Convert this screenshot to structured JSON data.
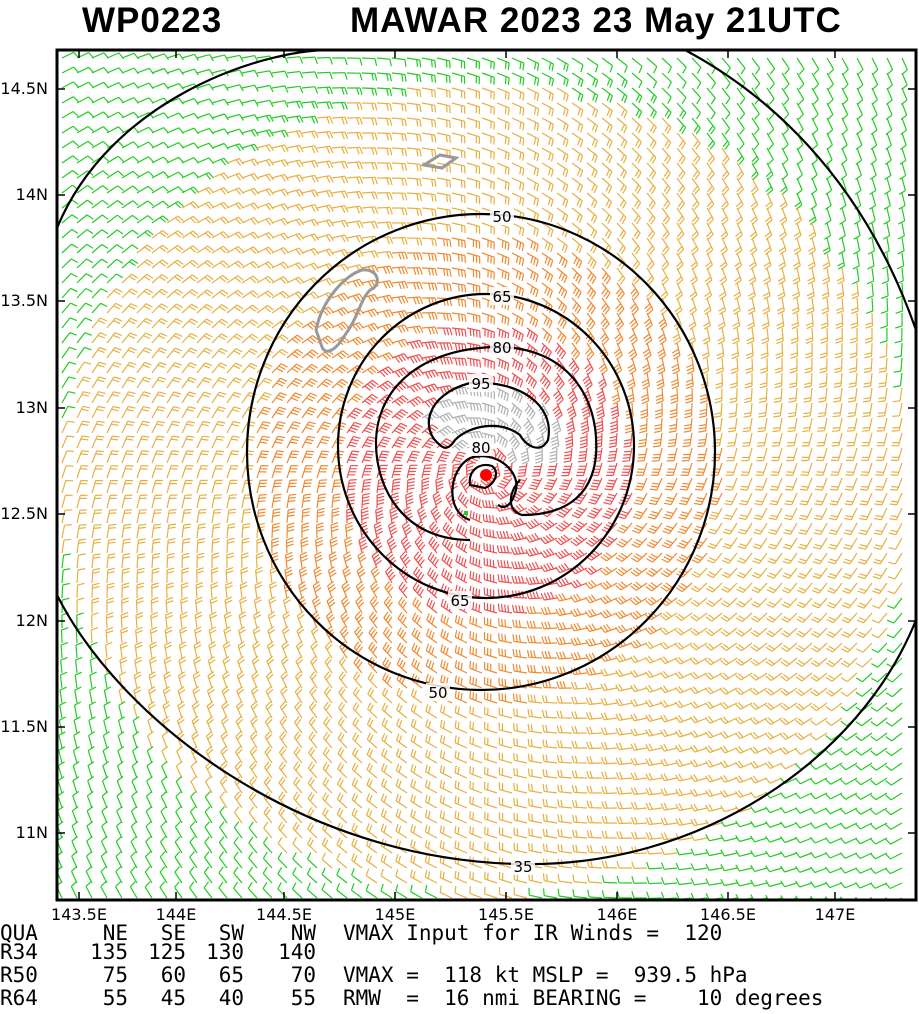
{
  "header": {
    "storm_id": "WP0223",
    "storm_title": "MAWAR 2023 23 May 21UTC"
  },
  "map": {
    "lat_labels": [
      "14.5N",
      "14N",
      "13.5N",
      "13N",
      "12.5N",
      "12N",
      "11.5N",
      "11N"
    ],
    "lon_labels": [
      "143.5E",
      "144E",
      "144.5E",
      "145E",
      "145.5E",
      "146E",
      "146.5E",
      "147E"
    ],
    "contour_labels": [
      "95",
      "80",
      "80",
      "65",
      "65",
      "50",
      "50",
      "35"
    ],
    "colors": {
      "wind_ts": "#e8b040",
      "wind_strong": "#f08a30",
      "wind_hurricane": "#f05050",
      "wind_light": "#22cc22",
      "wind_eye": "#b0b0b0",
      "contour": "#000000",
      "center_marker": "#ff0000",
      "coastline": "#999999"
    }
  },
  "table": {
    "header": [
      "QUA",
      "NE",
      "SE",
      "SW",
      "NW"
    ],
    "rows": [
      [
        "R34",
        "135",
        "125",
        "130",
        "140"
      ],
      [
        "R50",
        "75",
        "60",
        "65",
        "70"
      ],
      [
        "R64",
        "55",
        "45",
        "40",
        "55"
      ]
    ]
  },
  "info": {
    "line1": "VMAX Input for IR Winds =  120",
    "line2": "VMAX =  118 kt MSLP =  939.5 hPa",
    "line3": "RMW  =  16 nmi BEARING =    10 degrees"
  }
}
